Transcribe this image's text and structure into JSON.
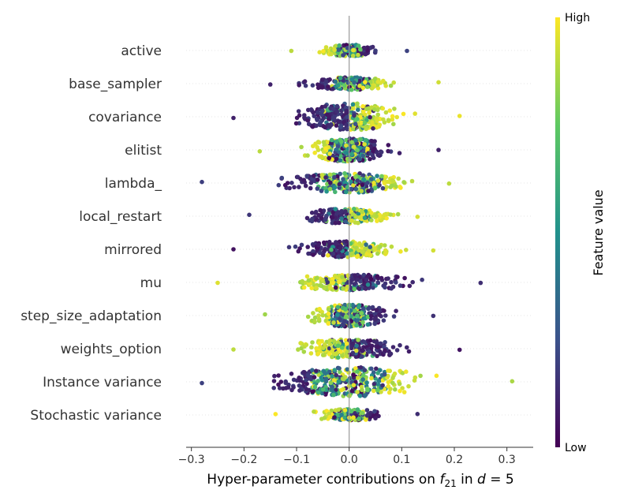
{
  "chart_data": {
    "type": "scatter",
    "subtype": "beeswarm",
    "xlabel_prefix": "Hyper-parameter contributions on ",
    "xlabel_f": "f",
    "xlabel_sub": "21",
    "xlabel_mid": " in ",
    "xlabel_d": "d",
    "xlabel_eq": " = 5",
    "xticks": [
      "−0.3",
      "−0.2",
      "−0.1",
      "0.0",
      "0.1",
      "0.2",
      "0.3"
    ],
    "xtick_values": [
      -0.3,
      -0.2,
      -0.1,
      0.0,
      0.1,
      0.2,
      0.3
    ],
    "xlim": [
      -0.31,
      0.35
    ],
    "colorbar": {
      "label": "Feature value",
      "high": "High",
      "low": "Low"
    },
    "colors": {
      "low": "#440154",
      "mid": "#21918c",
      "high": "#fde725"
    },
    "series": [
      {
        "name": "active",
        "min": -0.11,
        "max": 0.11,
        "low_side": "right",
        "bulge": 0.25,
        "mixed": true
      },
      {
        "name": "base_sampler",
        "min": -0.15,
        "max": 0.17,
        "low_side": "left",
        "bulge": 0.3,
        "mixed": true
      },
      {
        "name": "covariance",
        "min": -0.22,
        "max": 0.21,
        "low_side": "left",
        "bulge": 0.9,
        "mixed": false
      },
      {
        "name": "elitist",
        "min": -0.17,
        "max": 0.17,
        "low_side": "right",
        "bulge": 0.75,
        "mixed": true
      },
      {
        "name": "lambda_",
        "min": -0.28,
        "max": 0.19,
        "low_side": "left",
        "bulge": 0.6,
        "mixed": true
      },
      {
        "name": "local_restart",
        "min": -0.19,
        "max": 0.13,
        "low_side": "left",
        "bulge": 0.4,
        "mixed": false
      },
      {
        "name": "mirrored",
        "min": -0.22,
        "max": 0.16,
        "low_side": "left",
        "bulge": 0.45,
        "mixed": false
      },
      {
        "name": "mu",
        "min": -0.25,
        "max": 0.25,
        "low_side": "right",
        "bulge": 0.45,
        "mixed": false
      },
      {
        "name": "step_size_adaptation",
        "min": -0.16,
        "max": 0.16,
        "low_side": "right",
        "bulge": 0.7,
        "mixed": true
      },
      {
        "name": "weights_option",
        "min": -0.22,
        "max": 0.21,
        "low_side": "right",
        "bulge": 0.55,
        "mixed": false
      },
      {
        "name": "Instance variance",
        "min": -0.28,
        "max": 0.31,
        "low_side": "left",
        "bulge": 1.0,
        "mixed": true
      },
      {
        "name": "Stochastic variance",
        "min": -0.14,
        "max": 0.13,
        "low_side": "right",
        "bulge": 0.25,
        "mixed": true
      }
    ]
  }
}
